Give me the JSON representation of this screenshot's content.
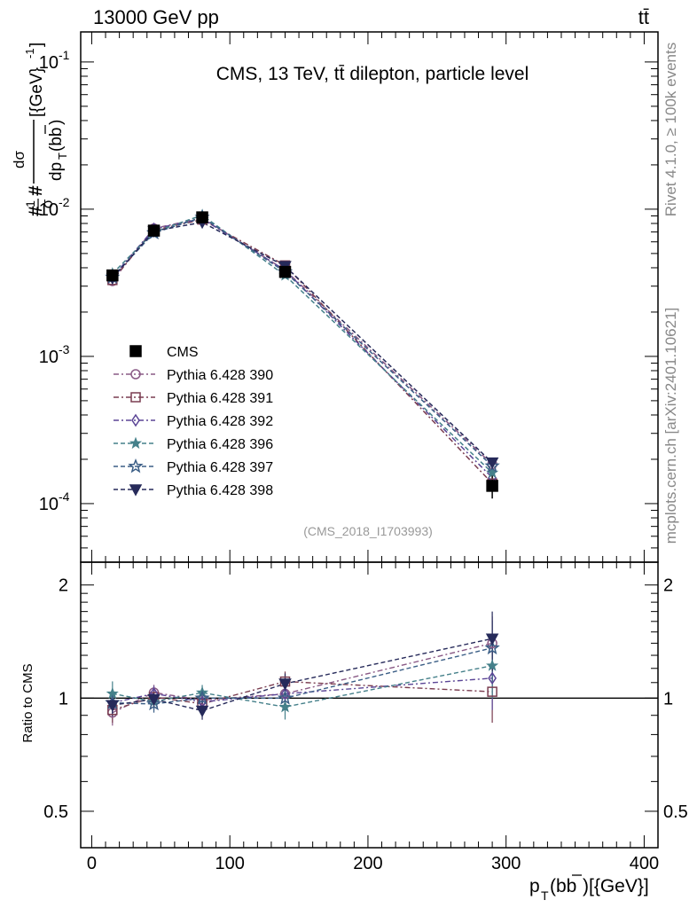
{
  "header": {
    "left_label": "13000 GeV pp",
    "right_label": "tt̄"
  },
  "side_labels": {
    "rivet": "Rivet 4.1.0, ≥ 100k events",
    "source": "mcplots.cern.ch [arXiv:2401.10621]"
  },
  "chart_data": [
    {
      "id": "main",
      "type": "line",
      "title": "CMS, 13 TeV, tt̄ dilepton, particle level",
      "watermark": "(CMS_2018_I1703993)",
      "xlabel": "p_T(bb̄)[{GeV}]",
      "ylabel": "#frac{1}{σ}#frac{dσ}{dp_T(bb̄)}[{GeV}^{-1}]",
      "yscale": "log",
      "xlim": [
        -8,
        410
      ],
      "ylim": [
        4e-05,
        0.16
      ],
      "ytick_labels": [
        "10^{-1}",
        "10^{-2}",
        "10^{-3}",
        "10^{-4}"
      ],
      "x": [
        15,
        45,
        80,
        140,
        290
      ],
      "data": {
        "name": "CMS",
        "values": [
          0.00355,
          0.00715,
          0.0088,
          0.00375,
          0.000132
        ],
        "yerr_frac": [
          0.08,
          0.05,
          0.05,
          0.07,
          0.18
        ]
      },
      "series": [
        {
          "name": "Pythia 6.428 390",
          "color": "#8a5a86",
          "dash": "dashdot",
          "marker": "circle-open",
          "values": [
            0.00325,
            0.0074,
            0.0087,
            0.00385,
            0.000185
          ]
        },
        {
          "name": "Pythia 6.428 391",
          "color": "#7a3d50",
          "dash": "dashdot",
          "marker": "square-open",
          "values": [
            0.0033,
            0.0072,
            0.0085,
            0.00415,
            0.000137
          ]
        },
        {
          "name": "Pythia 6.428 392",
          "color": "#5b4596",
          "dash": "dashdot",
          "marker": "diamond-open",
          "values": [
            0.00345,
            0.00735,
            0.0086,
            0.00385,
            0.00015
          ]
        },
        {
          "name": "Pythia 6.428 396",
          "color": "#45808a",
          "dash": "dashed",
          "marker": "star-filled",
          "values": [
            0.00365,
            0.007,
            0.0091,
            0.00355,
            0.000162
          ]
        },
        {
          "name": "Pythia 6.428 397",
          "color": "#3b5e86",
          "dash": "dashed",
          "marker": "star-open",
          "values": [
            0.00345,
            0.0069,
            0.0088,
            0.00375,
            0.00018
          ]
        },
        {
          "name": "Pythia 6.428 398",
          "color": "#262a5a",
          "dash": "dashed",
          "marker": "triangle-down-filled",
          "values": [
            0.0034,
            0.0071,
            0.00815,
            0.0041,
            0.00019
          ]
        }
      ]
    },
    {
      "id": "ratio",
      "type": "line",
      "ylabel": "Ratio to CMS",
      "yscale": "log",
      "ylim": [
        0.4,
        2.3
      ],
      "ytick_labels": [
        "2",
        "1",
        "0.5"
      ],
      "xtick_labels": [
        "0",
        "100",
        "200",
        "300",
        "400"
      ],
      "x": [
        15,
        45,
        80,
        140,
        290
      ],
      "reference": 1,
      "series": [
        {
          "name": "Pythia 6.428 390",
          "values": [
            0.915,
            1.035,
            0.988,
            1.027,
            1.4
          ],
          "err": [
            0.07,
            0.05,
            0.05,
            0.07,
            0.25
          ]
        },
        {
          "name": "Pythia 6.428 391",
          "values": [
            0.93,
            1.007,
            0.966,
            1.107,
            1.04
          ],
          "err": [
            0.07,
            0.05,
            0.05,
            0.07,
            0.18
          ]
        },
        {
          "name": "Pythia 6.428 392",
          "values": [
            0.972,
            1.028,
            0.977,
            1.027,
            1.13
          ],
          "err": [
            0.07,
            0.05,
            0.05,
            0.07,
            0.2
          ]
        },
        {
          "name": "Pythia 6.428 396",
          "values": [
            1.028,
            0.979,
            1.034,
            0.947,
            1.22
          ],
          "err": [
            0.08,
            0.05,
            0.05,
            0.07,
            0.22
          ]
        },
        {
          "name": "Pythia 6.428 397",
          "values": [
            0.972,
            0.965,
            1.0,
            1.0,
            1.36
          ],
          "err": [
            0.07,
            0.05,
            0.05,
            0.07,
            0.25
          ]
        },
        {
          "name": "Pythia 6.428 398",
          "values": [
            0.958,
            0.993,
            0.926,
            1.093,
            1.44
          ],
          "err": [
            0.07,
            0.05,
            0.05,
            0.07,
            0.26
          ]
        }
      ]
    }
  ]
}
